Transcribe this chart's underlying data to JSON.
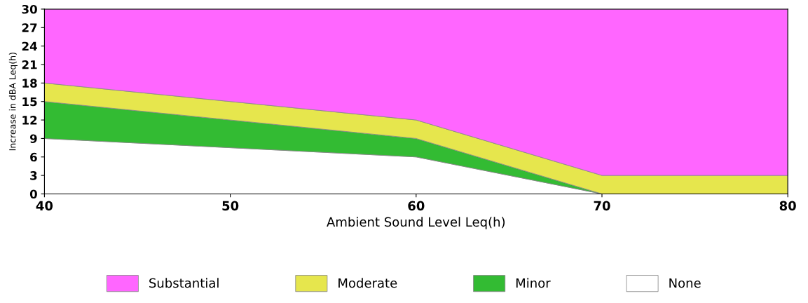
{
  "chart_data": {
    "type": "area",
    "stacked": true,
    "xlabel": "Ambient Sound Level Leq(h)",
    "ylabel": "Increase in dBA Leq(h)",
    "x": [
      40,
      60,
      70,
      80
    ],
    "series": [
      {
        "name": "None",
        "color": "#ffffff",
        "values": [
          9,
          6,
          0,
          0
        ]
      },
      {
        "name": "Minor",
        "color": "#33bb33",
        "values": [
          6,
          3,
          0,
          0
        ]
      },
      {
        "name": "Moderate",
        "color": "#e6e64d",
        "values": [
          3,
          3,
          3,
          3
        ]
      },
      {
        "name": "Substantial",
        "color": "#ff66ff",
        "values": [
          12,
          18,
          27,
          27
        ]
      }
    ],
    "xlim": [
      40,
      80
    ],
    "xticks": [
      40,
      50,
      60,
      70,
      80
    ],
    "ylim": [
      0,
      30
    ],
    "yticks": [
      0,
      3,
      6,
      9,
      12,
      15,
      18,
      21,
      24,
      27,
      30
    ],
    "grid": false,
    "legend": "bottom"
  }
}
